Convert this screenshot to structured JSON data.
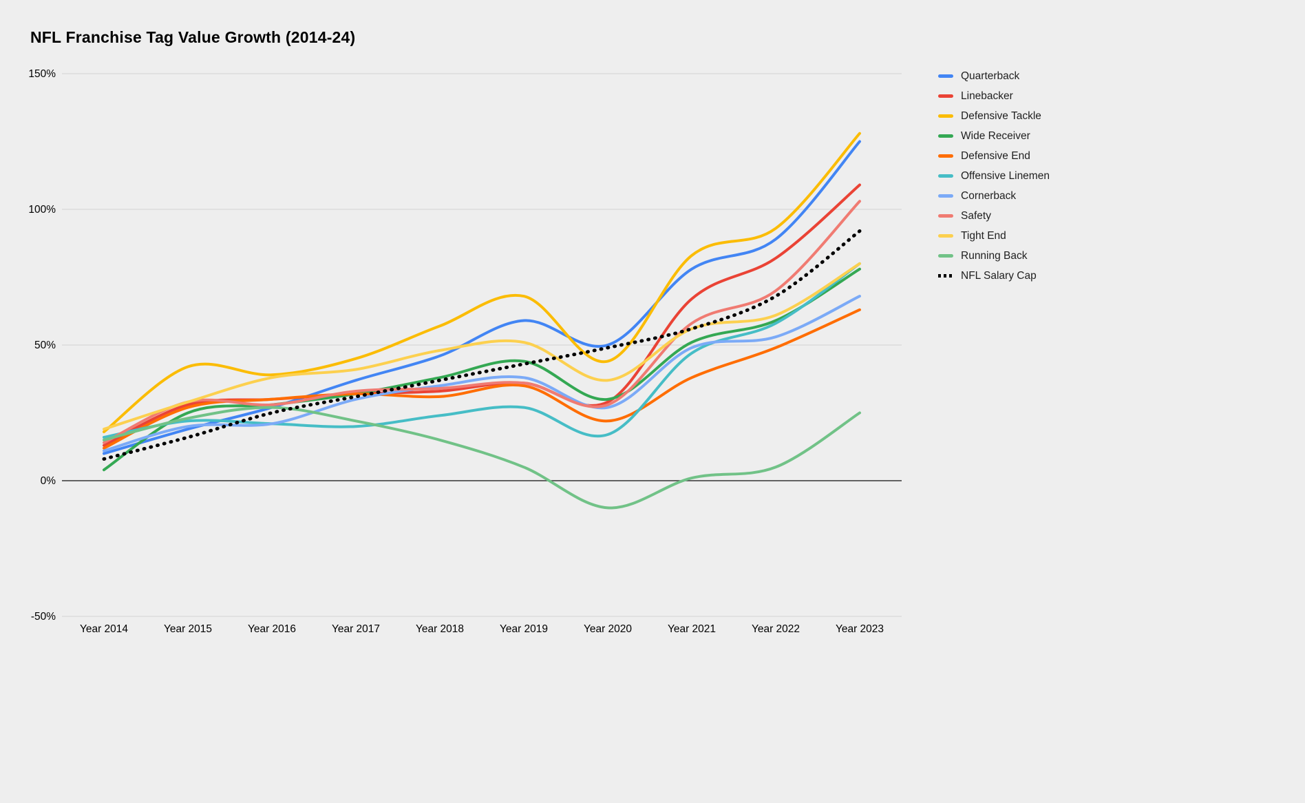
{
  "page": {
    "background": "#eeeeee"
  },
  "chart_data": {
    "type": "line",
    "title": "NFL Franchise Tag Value Growth (2014-24)",
    "xlabel": "",
    "ylabel": "",
    "line_style": "smooth",
    "grid": true,
    "legend_position": "right",
    "ylim": [
      -50,
      150
    ],
    "yticks": [
      {
        "value": 150,
        "label": "150%"
      },
      {
        "value": 100,
        "label": "100%"
      },
      {
        "value": 50,
        "label": "50%"
      },
      {
        "value": 0,
        "label": "0%"
      },
      {
        "value": -50,
        "label": "-50%"
      }
    ],
    "categories": [
      "Year 2014",
      "Year 2015",
      "Year 2016",
      "Year 2017",
      "Year 2018",
      "Year 2019",
      "Year 2020",
      "Year 2021",
      "Year 2022",
      "Year 2023"
    ],
    "series": [
      {
        "name": "Quarterback",
        "color": "#4285F4",
        "dashed": false,
        "values": [
          10,
          19,
          27,
          37,
          46,
          59,
          50,
          78,
          89,
          125
        ]
      },
      {
        "name": "Linebacker",
        "color": "#EA4335",
        "dashed": false,
        "values": [
          13,
          28,
          30,
          32,
          33,
          36,
          29,
          67,
          82,
          109
        ]
      },
      {
        "name": "Defensive Tackle",
        "color": "#FBBC04",
        "dashed": false,
        "values": [
          18,
          42,
          39,
          45,
          57,
          68,
          44,
          83,
          93,
          128
        ]
      },
      {
        "name": "Wide Receiver",
        "color": "#34A853",
        "dashed": false,
        "values": [
          4,
          25,
          28,
          32,
          38,
          44,
          30,
          51,
          59,
          78
        ]
      },
      {
        "name": "Defensive End",
        "color": "#FF6D01",
        "dashed": false,
        "values": [
          12,
          27,
          30,
          32,
          31,
          35,
          22,
          38,
          49,
          63
        ]
      },
      {
        "name": "Offensive Linemen",
        "color": "#46BDC6",
        "dashed": false,
        "values": [
          16,
          22,
          21,
          20,
          24,
          27,
          17,
          47,
          58,
          80
        ]
      },
      {
        "name": "Cornerback",
        "color": "#7BAAF7",
        "dashed": false,
        "values": [
          11,
          20,
          21,
          30,
          35,
          38,
          27,
          49,
          53,
          68
        ]
      },
      {
        "name": "Safety",
        "color": "#F07B72",
        "dashed": false,
        "values": [
          14,
          29,
          28,
          33,
          34,
          36,
          28,
          58,
          70,
          103
        ]
      },
      {
        "name": "Tight End",
        "color": "#FCD04F",
        "dashed": false,
        "values": [
          19,
          29,
          38,
          41,
          48,
          51,
          37,
          56,
          61,
          80
        ]
      },
      {
        "name": "Running Back",
        "color": "#71C287",
        "dashed": false,
        "values": [
          15,
          23,
          27,
          22,
          15,
          5,
          -10,
          1,
          5,
          25
        ]
      },
      {
        "name": "NFL Salary Cap",
        "color": "#000000",
        "dashed": true,
        "values": [
          8,
          16,
          25,
          31,
          37,
          43,
          49,
          56,
          68,
          92
        ]
      }
    ],
    "colors": {
      "gridline": "#d2d2d2",
      "zero_line": "#333333",
      "axis_text": "#000000"
    }
  }
}
